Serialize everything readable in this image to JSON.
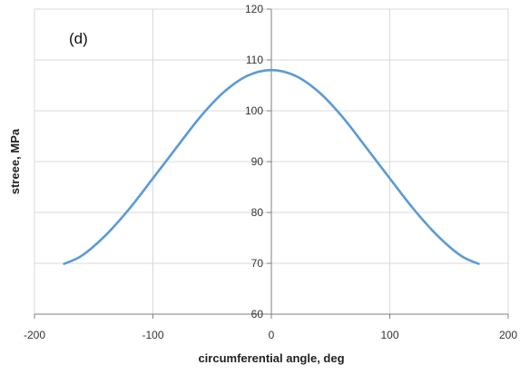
{
  "chart_data": {
    "type": "line",
    "panel_label": "(d)",
    "xlabel": "circumferential angle, deg",
    "ylabel": "streee, MPa",
    "xlim": [
      -200,
      200
    ],
    "ylim": [
      60,
      120
    ],
    "xticks": [
      "-200",
      "-100",
      "0",
      "100",
      "200"
    ],
    "yticks": [
      "60",
      "70",
      "80",
      "90",
      "100",
      "110",
      "120"
    ],
    "grid": true,
    "line_color": "#5b9bd5",
    "series": [
      {
        "x": [
          -175,
          -160,
          -140,
          -120,
          -100,
          -80,
          -60,
          -40,
          -20,
          0,
          20,
          40,
          60,
          80,
          100,
          120,
          140,
          160,
          175
        ],
        "y": [
          69.9,
          71.5,
          75.5,
          80.7,
          86.7,
          92.8,
          98.8,
          103.7,
          106.9,
          108.0,
          106.9,
          103.7,
          98.8,
          92.8,
          86.7,
          80.7,
          75.5,
          71.5,
          69.9
        ]
      }
    ]
  }
}
